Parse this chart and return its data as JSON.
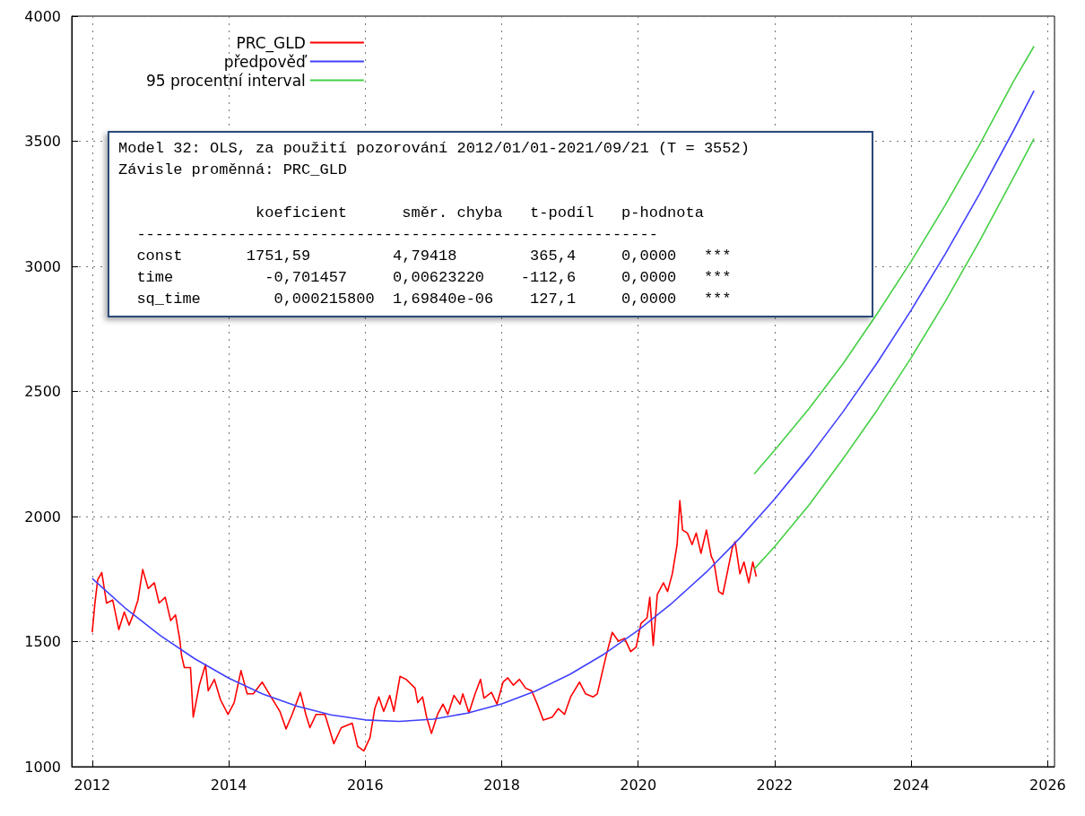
{
  "chart_data": {
    "type": "line",
    "xlim": [
      2011.7,
      2026.1
    ],
    "xticks": [
      2012,
      2014,
      2016,
      2018,
      2020,
      2022,
      2024,
      2026
    ],
    "ylim": [
      1000,
      4000
    ],
    "yticks": [
      1000,
      1500,
      2000,
      2500,
      3000,
      3500,
      4000
    ],
    "grid": true,
    "legend": "top left",
    "line_style": "solid",
    "marker": "none",
    "annotations": [
      "Model 32: OLS, za použití pozorování 2012/01/01-2021/09/21 (T = 3552)",
      "Závisle proměnná: PRC_GLD",
      "               koeficient      směr. chyba   t-podíl   p-hodnota",
      "  ---------------------------------------------------------",
      "  const       1751,59         4,79418        365,4     0,0000   ***",
      "  time          -0,701457     0,00623220    -112,6     0,0000   ***",
      "  sq_time        0,000215800  1,69840e-06    127,1     0,0000   ***"
    ],
    "series": [
      {
        "name": "PRC_GLD",
        "color": "#ff0000",
        "x": [
          2012.0,
          2012.04,
          2012.08,
          2012.14,
          2012.21,
          2012.3,
          2012.39,
          2012.47,
          2012.54,
          2012.6,
          2012.67,
          2012.74,
          2012.82,
          2012.91,
          2012.98,
          2013.07,
          2013.15,
          2013.22,
          2013.28,
          2013.31,
          2013.35,
          2013.44,
          2013.48,
          2013.57,
          2013.66,
          2013.7,
          2013.79,
          2013.88,
          2013.99,
          2014.08,
          2014.18,
          2014.27,
          2014.36,
          2014.49,
          2014.62,
          2014.75,
          2014.84,
          2014.93,
          2015.05,
          2015.13,
          2015.19,
          2015.28,
          2015.41,
          2015.54,
          2015.65,
          2015.81,
          2015.89,
          2015.98,
          2016.07,
          2016.14,
          2016.2,
          2016.27,
          2016.36,
          2016.42,
          2016.51,
          2016.6,
          2016.73,
          2016.77,
          2016.84,
          2016.9,
          2016.97,
          2017.06,
          2017.14,
          2017.21,
          2017.3,
          2017.39,
          2017.43,
          2017.52,
          2017.61,
          2017.69,
          2017.74,
          2017.85,
          2017.93,
          2018.02,
          2018.09,
          2018.17,
          2018.26,
          2018.35,
          2018.44,
          2018.53,
          2018.61,
          2018.74,
          2018.83,
          2018.92,
          2019.01,
          2019.14,
          2019.23,
          2019.34,
          2019.4,
          2019.47,
          2019.53,
          2019.62,
          2019.71,
          2019.8,
          2019.89,
          2019.97,
          2020.04,
          2020.13,
          2020.17,
          2020.22,
          2020.28,
          2020.37,
          2020.43,
          2020.5,
          2020.57,
          2020.61,
          2020.65,
          2020.72,
          2020.79,
          2020.85,
          2020.92,
          2021.0,
          2021.07,
          2021.11,
          2021.18,
          2021.24,
          2021.31,
          2021.38,
          2021.42,
          2021.49,
          2021.55,
          2021.62,
          2021.68,
          2021.73
        ],
        "values": [
          1537,
          1654,
          1747,
          1776,
          1654,
          1666,
          1548,
          1618,
          1566,
          1607,
          1666,
          1788,
          1712,
          1735,
          1654,
          1677,
          1584,
          1607,
          1513,
          1443,
          1396,
          1396,
          1198,
          1326,
          1408,
          1303,
          1349,
          1267,
          1209,
          1256,
          1384,
          1291,
          1291,
          1338,
          1279,
          1221,
          1151,
          1209,
          1297,
          1209,
          1156,
          1209,
          1209,
          1092,
          1156,
          1174,
          1081,
          1063,
          1116,
          1232,
          1279,
          1221,
          1285,
          1221,
          1361,
          1349,
          1314,
          1256,
          1279,
          1198,
          1133,
          1209,
          1250,
          1209,
          1285,
          1250,
          1291,
          1215,
          1291,
          1349,
          1274,
          1297,
          1250,
          1338,
          1355,
          1326,
          1349,
          1314,
          1303,
          1244,
          1186,
          1198,
          1232,
          1209,
          1279,
          1338,
          1291,
          1279,
          1291,
          1373,
          1443,
          1537,
          1502,
          1513,
          1460,
          1478,
          1572,
          1595,
          1677,
          1484,
          1689,
          1735,
          1700,
          1771,
          1888,
          2063,
          1946,
          1934,
          1888,
          1934,
          1853,
          1946,
          1841,
          1818,
          1700,
          1689,
          1782,
          1876,
          1899,
          1771,
          1818,
          1735,
          1818,
          1760
        ]
      },
      {
        "name": "předpověď",
        "color": "#4040ff",
        "x": [
          2012.0,
          2012.5,
          2013.0,
          2013.5,
          2014.0,
          2014.5,
          2015.0,
          2015.5,
          2016.0,
          2016.5,
          2017.0,
          2017.5,
          2018.0,
          2018.5,
          2019.0,
          2019.5,
          2020.0,
          2020.5,
          2021.0,
          2021.5,
          2022.0,
          2022.5,
          2023.0,
          2023.5,
          2024.0,
          2024.5,
          2025.0,
          2025.5,
          2025.8
        ],
        "values": [
          1752,
          1630,
          1524,
          1432,
          1354,
          1290,
          1242,
          1207,
          1187,
          1181,
          1190,
          1214,
          1251,
          1303,
          1369,
          1450,
          1545,
          1655,
          1778,
          1917,
          2070,
          2237,
          2418,
          2614,
          2825,
          3050,
          3289,
          3543,
          3702
        ]
      },
      {
        "name": "95 procentní interval",
        "color": "#44d044",
        "x": [
          2021.7,
          2022.0,
          2022.5,
          2023.0,
          2023.5,
          2024.0,
          2024.5,
          2025.0,
          2025.5,
          2025.8
        ],
        "values": [
          2170,
          2265,
          2430,
          2610,
          2810,
          3020,
          3245,
          3485,
          3740,
          3880
        ]
      },
      {
        "color": "#44d044",
        "x": [
          2021.7,
          2022.0,
          2022.5,
          2023.0,
          2023.5,
          2024.0,
          2024.5,
          2025.0,
          2025.5,
          2025.8
        ],
        "values": [
          1790,
          1880,
          2045,
          2230,
          2425,
          2635,
          2860,
          3100,
          3355,
          3510
        ]
      }
    ]
  }
}
